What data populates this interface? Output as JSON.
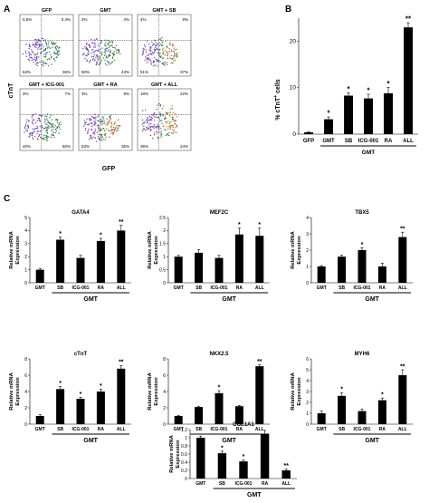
{
  "panels": {
    "a": "A",
    "b": "B",
    "c": "C"
  },
  "flow": {
    "ylabel": "cTnT",
    "xlabel": "GFP",
    "plots": [
      {
        "title": "GFP",
        "quadrants": [
          "0.6%",
          "0.4%",
          "63%",
          "36%"
        ]
      },
      {
        "title": "GMT",
        "quadrants": [
          "3%",
          "4%",
          "50%",
          "43%"
        ]
      },
      {
        "title": "GMT + SB",
        "quadrants": [
          "4%",
          "8%",
          "51%",
          "37%"
        ]
      },
      {
        "title": "GMT + ICG-001",
        "quadrants": [
          "3%",
          "7%",
          "40%",
          "50%"
        ]
      },
      {
        "title": "GMT + RA",
        "quadrants": [
          "3%",
          "9%",
          "53%",
          "35%"
        ]
      },
      {
        "title": "GMT + ALL",
        "quadrants": [
          "18%",
          "22%",
          "36%",
          "24%"
        ]
      }
    ]
  },
  "chart_b": {
    "ylabel": "% cTnT",
    "ylabel_sup": "+",
    "ylabel_suffix": " cells",
    "gmt_label": "GMT",
    "colors": {
      "bar": "#000000"
    }
  },
  "chart_data": [
    {
      "id": "B",
      "type": "bar",
      "categories": [
        "GFP",
        "GMT",
        "SB",
        "ICG-001",
        "RA",
        "ALL"
      ],
      "values": [
        0.4,
        3.2,
        8.3,
        7.7,
        8.8,
        23.0
      ],
      "errors": [
        0.1,
        0.5,
        0.6,
        0.9,
        1.3,
        1.0
      ],
      "significance": [
        "",
        "*",
        "*",
        "*",
        "*",
        "**"
      ],
      "ylim": [
        0,
        25
      ],
      "yticks": [
        0,
        10,
        20
      ],
      "xlabel": "",
      "ylabel": "% cTnT+ cells",
      "group_label": "GMT"
    },
    {
      "id": "GATA4",
      "type": "bar",
      "title": "GATA4",
      "categories": [
        "GMT",
        "SB",
        "ICG-001",
        "RA",
        "ALL"
      ],
      "values": [
        1.0,
        3.3,
        1.9,
        3.2,
        4.0
      ],
      "errors": [
        0.1,
        0.2,
        0.2,
        0.2,
        0.4
      ],
      "significance": [
        "",
        "*",
        "",
        "*",
        "**"
      ],
      "ylim": [
        0,
        5
      ],
      "yticks": [
        0,
        1,
        2,
        3,
        4,
        5
      ],
      "ylabel": "Relative mRNA Expression",
      "group_label": "GMT"
    },
    {
      "id": "MEF2C",
      "type": "bar",
      "title": "MEF2C",
      "categories": [
        "GMT",
        "SB",
        "ICG-001",
        "RA",
        "ALL"
      ],
      "values": [
        1.0,
        1.15,
        0.95,
        1.85,
        1.8
      ],
      "errors": [
        0.05,
        0.12,
        0.1,
        0.25,
        0.3
      ],
      "significance": [
        "",
        "",
        "",
        "*",
        "*"
      ],
      "ylim": [
        0,
        2.5
      ],
      "yticks": [
        0,
        0.5,
        1,
        1.5,
        2,
        2.5
      ],
      "ylabel": "Relative mRNA Expression",
      "group_label": "GMT"
    },
    {
      "id": "TBX5",
      "type": "bar",
      "title": "TBX5",
      "categories": [
        "GMT",
        "SB",
        "ICG-001",
        "RA",
        "ALL"
      ],
      "values": [
        1.0,
        1.6,
        2.0,
        1.0,
        2.8
      ],
      "errors": [
        0.05,
        0.1,
        0.15,
        0.2,
        0.3
      ],
      "significance": [
        "",
        "",
        "*",
        "",
        "**"
      ],
      "ylim": [
        0,
        4
      ],
      "yticks": [
        0,
        1,
        2,
        3,
        4
      ],
      "ylabel": "Relative mRNA Expression",
      "group_label": "GMT"
    },
    {
      "id": "cTnT",
      "type": "bar",
      "title": "cTnT",
      "categories": [
        "GMT",
        "SB",
        "ICG-001",
        "RA",
        "ALL"
      ],
      "values": [
        1.0,
        4.3,
        3.1,
        4.0,
        6.8
      ],
      "errors": [
        0.2,
        0.3,
        0.2,
        0.3,
        0.4
      ],
      "significance": [
        "",
        "*",
        "*",
        "*",
        "**"
      ],
      "ylim": [
        0,
        8
      ],
      "yticks": [
        0,
        2,
        4,
        6,
        8
      ],
      "ylabel": "Relative mRNA Expression",
      "group_label": "GMT"
    },
    {
      "id": "NKX2.5",
      "type": "bar",
      "title": "NKX2.5",
      "categories": [
        "GMT",
        "SB",
        "ICG-001",
        "RA",
        "ALL"
      ],
      "values": [
        1.0,
        2.1,
        3.8,
        2.2,
        7.1
      ],
      "errors": [
        0.05,
        0.1,
        0.3,
        0.1,
        0.2
      ],
      "significance": [
        "",
        "",
        "*",
        "",
        "**"
      ],
      "ylim": [
        0,
        8
      ],
      "yticks": [
        0,
        2,
        4,
        6,
        8
      ],
      "ylabel": "Relative mRNA Expression",
      "group_label": "GMT"
    },
    {
      "id": "MYH6",
      "type": "bar",
      "title": "MYH6",
      "categories": [
        "GMT",
        "SB",
        "ICG-001",
        "RA",
        "ALL"
      ],
      "values": [
        1.0,
        2.6,
        1.2,
        2.2,
        4.5
      ],
      "errors": [
        0.2,
        0.3,
        0.2,
        0.2,
        0.5
      ],
      "significance": [
        "",
        "*",
        "",
        "*",
        "**"
      ],
      "ylim": [
        0,
        6
      ],
      "yticks": [
        0,
        1,
        2,
        3,
        4,
        5,
        6
      ],
      "ylabel": "Relative mRNA Expression",
      "group_label": "GMT"
    },
    {
      "id": "COL1A1",
      "type": "bar",
      "title": "COL1A1",
      "categories": [
        "GMT",
        "SB",
        "ICG-001",
        "RA",
        "ALL"
      ],
      "values": [
        1.0,
        0.62,
        0.42,
        1.1,
        0.2
      ],
      "errors": [
        0.04,
        0.05,
        0.04,
        0.08,
        0.03
      ],
      "significance": [
        "",
        "*",
        "*",
        "",
        "**"
      ],
      "ylim": [
        0,
        1.2
      ],
      "yticks": [
        0,
        0.2,
        0.4,
        0.6,
        0.8,
        1,
        1.2
      ],
      "ylabel": "Relative mRNA Expression",
      "group_label": "GMT"
    }
  ]
}
